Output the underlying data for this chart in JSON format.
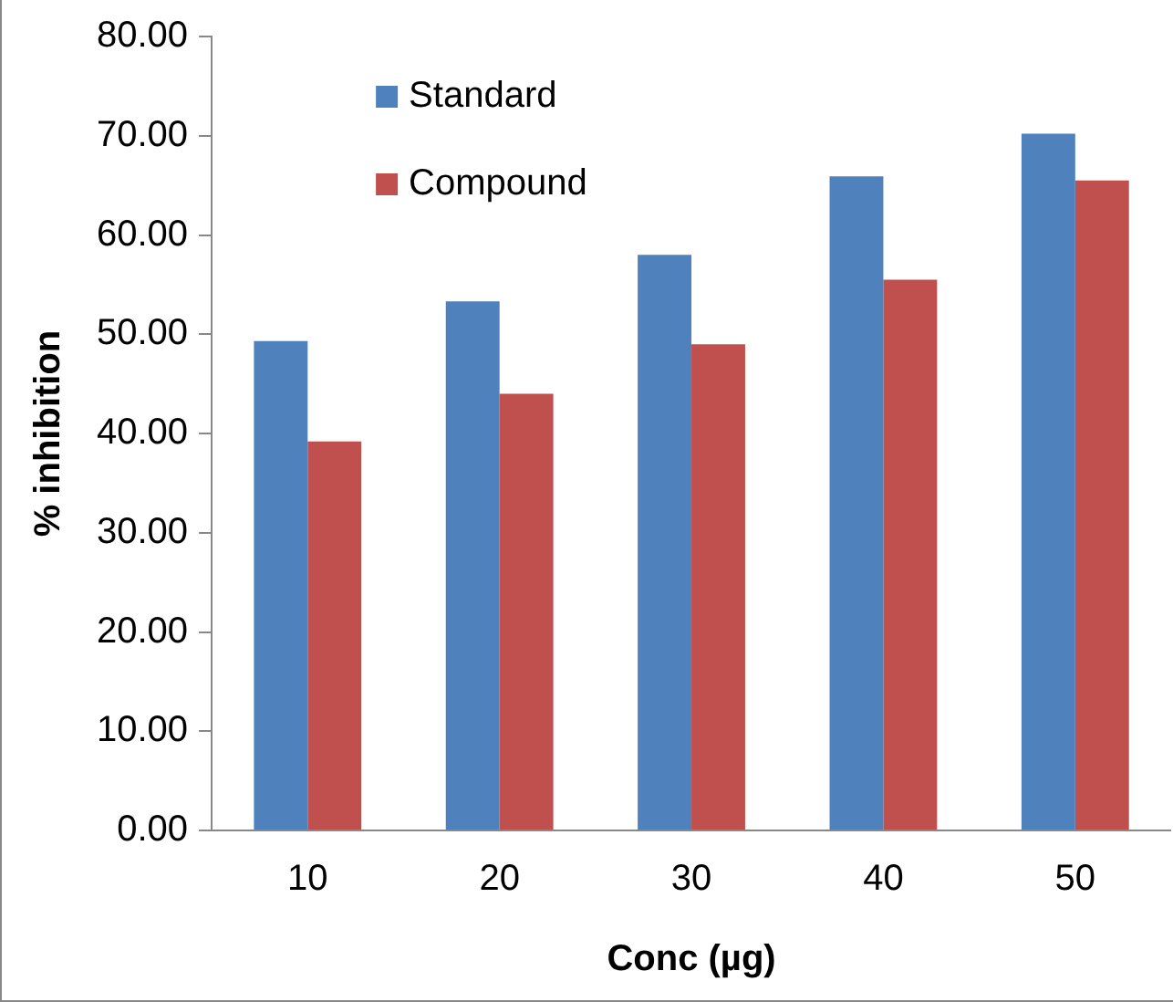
{
  "chart_data": {
    "type": "bar",
    "xlabel": "Conc (µg)",
    "ylabel": "% inhibition",
    "categories": [
      "10",
      "20",
      "30",
      "40",
      "50"
    ],
    "series": [
      {
        "name": "Standard",
        "color": "#4f81bd",
        "values": [
          49.3,
          53.3,
          58.0,
          65.9,
          70.2
        ]
      },
      {
        "name": "Compound",
        "color": "#c0504d",
        "values": [
          39.2,
          44.0,
          49.0,
          55.5,
          65.5
        ]
      }
    ],
    "ylim": [
      0,
      80
    ],
    "yticks": [
      {
        "value": 0,
        "label": "0.00"
      },
      {
        "value": 10,
        "label": "10.00"
      },
      {
        "value": 20,
        "label": "20.00"
      },
      {
        "value": 30,
        "label": "30.00"
      },
      {
        "value": 40,
        "label": "40.00"
      },
      {
        "value": 50,
        "label": "50.00"
      },
      {
        "value": 60,
        "label": "60.00"
      },
      {
        "value": 70,
        "label": "70.00"
      },
      {
        "value": 80,
        "label": "80.00"
      }
    ],
    "grid": false,
    "legend": "top left"
  }
}
